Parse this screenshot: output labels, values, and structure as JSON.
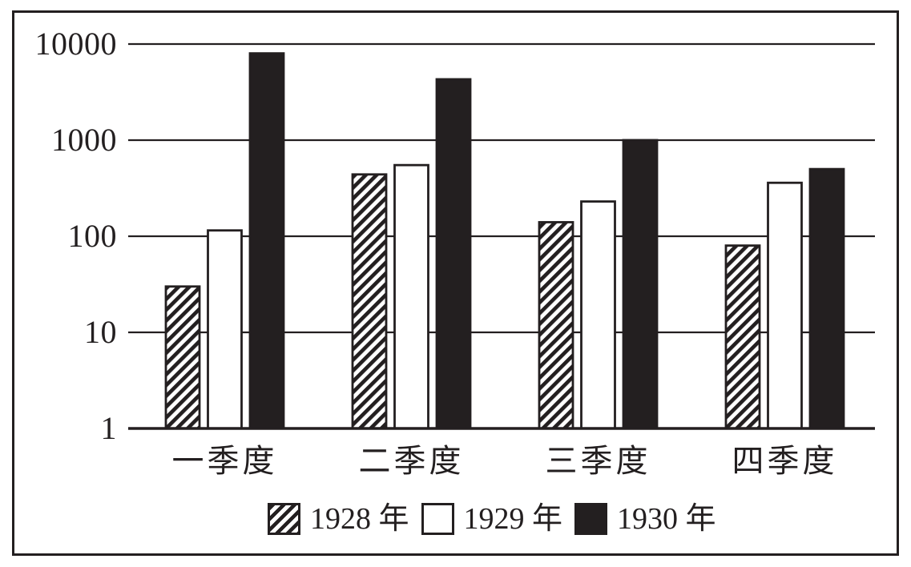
{
  "colors": {
    "ink": "#231f20",
    "paper": "#ffffff"
  },
  "chart_data": {
    "type": "bar",
    "scale": "log10",
    "title": "",
    "xlabel": "",
    "ylabel": "",
    "grid": true,
    "legend_position": "bottom",
    "ylim": [
      1,
      10000
    ],
    "y_ticks": [
      1,
      10,
      100,
      1000,
      10000
    ],
    "y_tick_labels": [
      "1",
      "10",
      "100",
      "1000",
      "10000"
    ],
    "categories": [
      "一季度",
      "二季度",
      "三季度",
      "四季度"
    ],
    "series": [
      {
        "name": "1928 年",
        "key": "1928",
        "fill": "hatched",
        "values": [
          30,
          440,
          140,
          80
        ]
      },
      {
        "name": "1929 年",
        "key": "1929",
        "fill": "white",
        "values": [
          115,
          550,
          230,
          360
        ]
      },
      {
        "name": "1930 年",
        "key": "1930",
        "fill": "black",
        "values": [
          8000,
          4300,
          1000,
          500
        ]
      }
    ]
  }
}
